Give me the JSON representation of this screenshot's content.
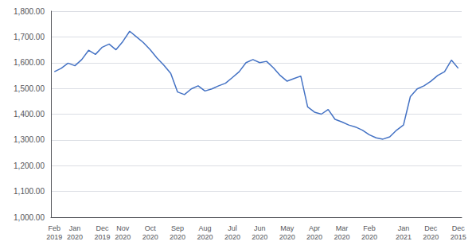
{
  "chart_data": {
    "type": "line",
    "categories": [
      "Feb\n2019",
      null,
      null,
      "Jan\n2020",
      null,
      null,
      null,
      "Dec\n2019",
      null,
      null,
      "Nov\n2020",
      null,
      null,
      null,
      "Oct\n2020",
      null,
      null,
      null,
      "Sep\n2020",
      null,
      null,
      null,
      "Aug\n2020",
      null,
      null,
      null,
      "Jul\n2020",
      null,
      null,
      null,
      "Jun\n2020",
      null,
      null,
      null,
      "May\n2020",
      null,
      null,
      null,
      "Apr\n2020",
      null,
      null,
      null,
      "Mar\n2020",
      null,
      null,
      null,
      "Feb\n2020",
      null,
      null,
      null,
      null,
      "Jan\n2021",
      null,
      null,
      null,
      "Dec\n2020",
      null,
      null,
      null,
      "Dec\n2015"
    ],
    "values": [
      1565,
      1578,
      1598,
      1588,
      1612,
      1648,
      1632,
      1660,
      1672,
      1650,
      1682,
      1722,
      1700,
      1678,
      1650,
      1618,
      1590,
      1558,
      1486,
      1476,
      1498,
      1510,
      1490,
      1498,
      1510,
      1520,
      1542,
      1565,
      1600,
      1612,
      1600,
      1605,
      1580,
      1550,
      1528,
      1538,
      1548,
      1428,
      1408,
      1400,
      1418,
      1380,
      1370,
      1358,
      1350,
      1338,
      1320,
      1308,
      1303,
      1312,
      1338,
      1358,
      1468,
      1498,
      1510,
      1528,
      1550,
      1565,
      1610,
      1578
    ],
    "color": "#4472C4",
    "ylim": [
      1000,
      1800
    ],
    "yticks": [
      {
        "value": 1000,
        "label": "1,000.00"
      },
      {
        "value": 1100,
        "label": "1,100.00"
      },
      {
        "value": 1200,
        "label": "1,200.00"
      },
      {
        "value": 1300,
        "label": "1,300.00"
      },
      {
        "value": 1400,
        "label": "1,400.00"
      },
      {
        "value": 1500,
        "label": "1,500.00"
      },
      {
        "value": 1600,
        "label": "1,600.00"
      },
      {
        "value": 1700,
        "label": "1,700.00"
      },
      {
        "value": 1800,
        "label": "1,800.00"
      }
    ],
    "grid": true
  }
}
